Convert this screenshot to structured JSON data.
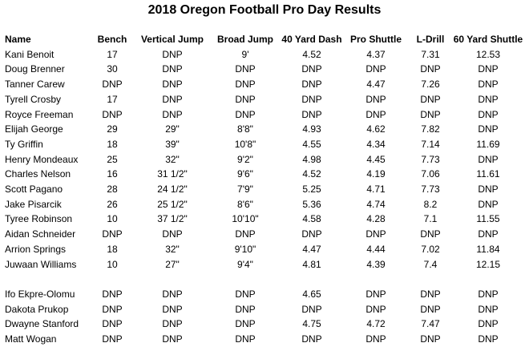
{
  "title": "2018 Oregon Football Pro Day Results",
  "columns": [
    "Name",
    "Bench",
    "Vertical Jump",
    "Broad Jump",
    "40 Yard Dash",
    "Pro Shuttle",
    "L-Drill",
    "60 Yard Shuttle"
  ],
  "rows": [
    [
      "Kani Benoit",
      "17",
      "DNP",
      "9'",
      "4.52",
      "4.37",
      "7.31",
      "12.53"
    ],
    [
      "Doug Brenner",
      "30",
      "DNP",
      "DNP",
      "DNP",
      "DNP",
      "DNP",
      "DNP"
    ],
    [
      "Tanner Carew",
      "DNP",
      "DNP",
      "DNP",
      "DNP",
      "4.47",
      "7.26",
      "DNP"
    ],
    [
      "Tyrell Crosby",
      "17",
      "DNP",
      "DNP",
      "DNP",
      "DNP",
      "DNP",
      "DNP"
    ],
    [
      "Royce Freeman",
      "DNP",
      "DNP",
      "DNP",
      "DNP",
      "DNP",
      "DNP",
      "DNP"
    ],
    [
      "Elijah George",
      "29",
      "29\"",
      "8'8\"",
      "4.93",
      "4.62",
      "7.82",
      "DNP"
    ],
    [
      "Ty Griffin",
      "18",
      "39\"",
      "10'8\"",
      "4.55",
      "4.34",
      "7.14",
      "11.69"
    ],
    [
      "Henry Mondeaux",
      "25",
      "32\"",
      "9'2\"",
      "4.98",
      "4.45",
      "7.73",
      "DNP"
    ],
    [
      "Charles Nelson",
      "16",
      "31 1/2\"",
      "9'6\"",
      "4.52",
      "4.19",
      "7.06",
      "11.61"
    ],
    [
      "Scott Pagano",
      "28",
      "24 1/2\"",
      "7'9\"",
      "5.25",
      "4.71",
      "7.73",
      "DNP"
    ],
    [
      "Jake Pisarcik",
      "26",
      "25 1/2\"",
      "8'6\"",
      "5.36",
      "4.74",
      "8.2",
      "DNP"
    ],
    [
      "Tyree Robinson",
      "10",
      "37 1/2\"",
      "10'10\"",
      "4.58",
      "4.28",
      "7.1",
      "11.55"
    ],
    [
      "Aidan Schneider",
      "DNP",
      "DNP",
      "DNP",
      "DNP",
      "DNP",
      "DNP",
      "DNP"
    ],
    [
      "Arrion Springs",
      "18",
      "32\"",
      "9'10\"",
      "4.47",
      "4.44",
      "7.02",
      "11.84"
    ],
    [
      "Juwaan Williams",
      "10",
      "27\"",
      "9'4\"",
      "4.81",
      "4.39",
      "7.4",
      "12.15"
    ]
  ],
  "rows2": [
    [
      "Ifo Ekpre-Olomu",
      "DNP",
      "DNP",
      "DNP",
      "4.65",
      "DNP",
      "DNP",
      "DNP"
    ],
    [
      "Dakota Prukop",
      "DNP",
      "DNP",
      "DNP",
      "DNP",
      "DNP",
      "DNP",
      "DNP"
    ],
    [
      "Dwayne Stanford",
      "DNP",
      "DNP",
      "DNP",
      "4.75",
      "4.72",
      "7.47",
      "DNP"
    ],
    [
      "Matt Wogan",
      "DNP",
      "DNP",
      "DNP",
      "DNP",
      "DNP",
      "DNP",
      "DNP"
    ]
  ]
}
